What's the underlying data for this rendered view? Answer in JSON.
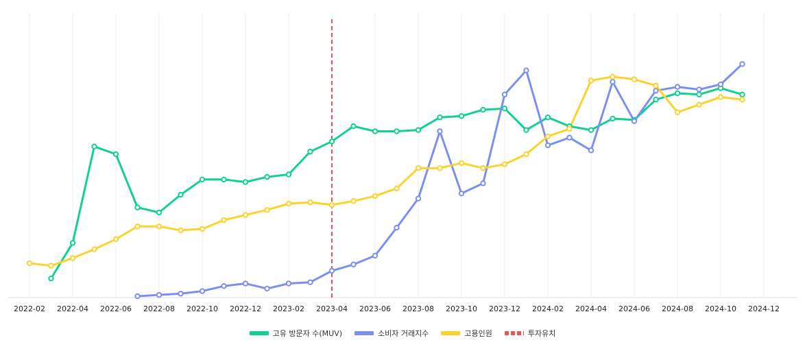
{
  "chart_data": {
    "type": "line",
    "x": [
      "2022-02",
      "2022-03",
      "2022-04",
      "2022-05",
      "2022-06",
      "2022-07",
      "2022-08",
      "2022-09",
      "2022-10",
      "2022-11",
      "2022-12",
      "2023-01",
      "2023-02",
      "2023-03",
      "2023-04",
      "2023-05",
      "2023-06",
      "2023-07",
      "2023-08",
      "2023-09",
      "2023-10",
      "2023-11",
      "2023-12",
      "2024-01",
      "2024-02",
      "2024-03",
      "2024-04",
      "2024-05",
      "2024-06",
      "2024-07",
      "2024-08",
      "2024-09",
      "2024-10",
      "2024-11"
    ],
    "x_ticks": [
      "2022-02",
      "2022-04",
      "2022-06",
      "2022-08",
      "2022-10",
      "2022-12",
      "2023-02",
      "2023-04",
      "2023-06",
      "2023-08",
      "2023-10",
      "2023-12",
      "2024-02",
      "2024-04",
      "2024-06",
      "2024-08",
      "2024-10",
      "2024-12"
    ],
    "ylim": [
      0,
      100
    ],
    "grid": "vertical",
    "legend_position": "bottom",
    "series": [
      {
        "name": "고유 방문자 수(MUV)",
        "color": "#12cf94",
        "values": [
          null,
          7,
          21,
          59,
          56,
          35,
          33,
          40,
          46,
          46,
          45,
          47,
          48,
          57,
          61,
          67,
          65,
          65,
          65.5,
          70.5,
          71,
          73.5,
          74,
          65.5,
          70.5,
          67,
          65.5,
          70,
          69.5,
          77.5,
          80,
          79.5,
          82,
          79.5
        ]
      },
      {
        "name": "소비자 거래지수",
        "color": "#7b8ff0",
        "values": [
          null,
          null,
          null,
          null,
          null,
          0,
          0.5,
          1,
          2,
          4,
          5,
          3,
          5,
          5.5,
          10,
          12.5,
          16,
          27,
          38.5,
          65,
          40.5,
          44.5,
          79.5,
          89,
          59.5,
          62.5,
          57.5,
          84.5,
          69,
          81,
          82.5,
          81.5,
          83.5,
          91.5
        ]
      },
      {
        "name": "고용인원",
        "color": "#fbd22c",
        "values": [
          13,
          12,
          15,
          18.5,
          22.5,
          27.5,
          27.5,
          26,
          26.5,
          30,
          32,
          34,
          36.5,
          37,
          36,
          37.5,
          39.5,
          42.5,
          50.5,
          50.5,
          52.5,
          50.5,
          52,
          56,
          63,
          66,
          85,
          86.5,
          85.5,
          83,
          72.5,
          75.5,
          78.5,
          77.5
        ]
      }
    ],
    "markers": [
      {
        "name": "투자유치",
        "x": "2023-04",
        "color": "#e35656",
        "style": "dashed"
      }
    ]
  }
}
